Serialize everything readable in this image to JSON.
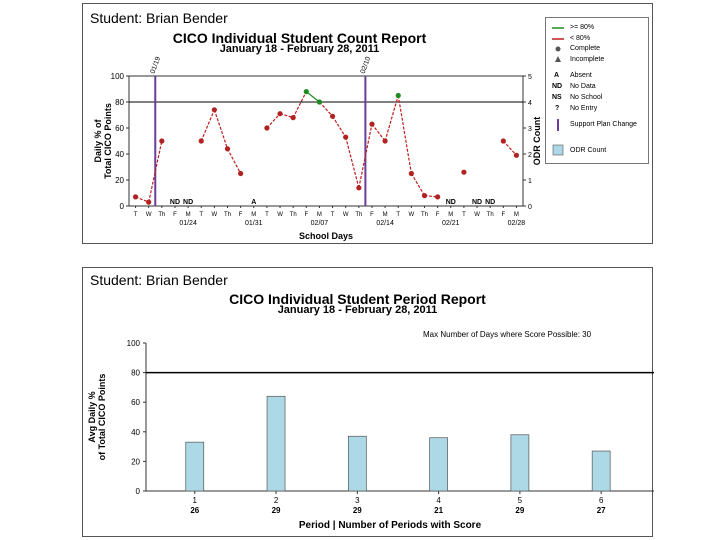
{
  "colors": {
    "dot": "#b22222",
    "line_below": "#c01c1c",
    "line_above": "#1f8a1f",
    "phase": "#6a3d9a",
    "bar_fill": "#add8e6",
    "bar_stroke": "#555555",
    "goal": "#000000"
  },
  "count_report": {
    "student_label": "Student: Brian Bender",
    "title": "CICO Individual Student Count Report",
    "subtitle": "January 18 - February 28, 2011",
    "legend": {
      "above": ">= 80%",
      "below": "< 80%",
      "complete": "Complete",
      "incomplete": "Incomplete",
      "absent_code": "A",
      "absent": "Absent",
      "nodata_code": "ND",
      "nodata": "No Data",
      "noschool_code": "NS",
      "noschool": "No School",
      "noentry_code": "?",
      "noentry": "No Entry",
      "phase": "Support Plan Change",
      "odr": "ODR Count"
    }
  },
  "period_report": {
    "student_label": "Student: Brian Bender",
    "title": "CICO Individual Student Period Report",
    "subtitle": "January 18 - February 28, 2011",
    "note": "Max Number of Days where Score Possible: 30"
  },
  "chart_data": [
    {
      "type": "line",
      "title": "CICO Individual Student Count Report",
      "xlabel": "School Days",
      "ylabel": "Daily % of Total CICO Points",
      "y2label": "ODR Count",
      "ylim": [
        0,
        100
      ],
      "y2lim": [
        0,
        5
      ],
      "yticks": [
        0,
        20,
        40,
        60,
        80,
        100
      ],
      "y2ticks": [
        0,
        1,
        2,
        3,
        4,
        5
      ],
      "goal": 80,
      "day_labels": [
        "T",
        "W",
        "Th",
        "F",
        "M",
        "T",
        "W",
        "Th",
        "F",
        "M",
        "T",
        "W",
        "Th",
        "F",
        "M",
        "T",
        "W",
        "Th",
        "F",
        "M",
        "T",
        "W",
        "Th",
        "F",
        "M",
        "T",
        "W",
        "Th",
        "F",
        "M"
      ],
      "date_ticks": [
        {
          "index": 4,
          "label": "01/24"
        },
        {
          "index": 9,
          "label": "01/31"
        },
        {
          "index": 14,
          "label": "02/07"
        },
        {
          "index": 19,
          "label": "02/14"
        },
        {
          "index": 24,
          "label": "02/21"
        },
        {
          "index": 29,
          "label": "02/28"
        }
      ],
      "phase_changes": [
        {
          "after_index": 1,
          "label": "01/19"
        },
        {
          "after_index": 17,
          "label": "02/10"
        }
      ],
      "values": [
        7,
        3,
        50,
        null,
        null,
        50,
        74,
        44,
        25,
        null,
        60,
        71,
        68,
        88,
        80,
        69,
        53,
        14,
        63,
        50,
        85,
        25,
        8,
        7,
        null,
        26,
        null,
        null,
        50,
        39
      ],
      "codes": [
        {
          "index": 3,
          "code": "ND"
        },
        {
          "index": 4,
          "code": "ND"
        },
        {
          "index": 9,
          "code": "A"
        },
        {
          "index": 24,
          "code": "ND"
        },
        {
          "index": 26,
          "code": "ND"
        },
        {
          "index": 27,
          "code": "ND"
        }
      ]
    },
    {
      "type": "bar",
      "title": "CICO Individual Student Period Report",
      "xlabel": "Period | Number of Periods with Score",
      "ylabel": "Avg Daily % of Total CICO Points",
      "ylim": [
        0,
        100
      ],
      "yticks": [
        0,
        20,
        40,
        60,
        80,
        100
      ],
      "goal": 80,
      "categories": [
        "1",
        "2",
        "3",
        "4",
        "5",
        "6"
      ],
      "counts": [
        "26",
        "29",
        "29",
        "21",
        "29",
        "27"
      ],
      "values": [
        33,
        64,
        37,
        36,
        38,
        27
      ]
    }
  ]
}
